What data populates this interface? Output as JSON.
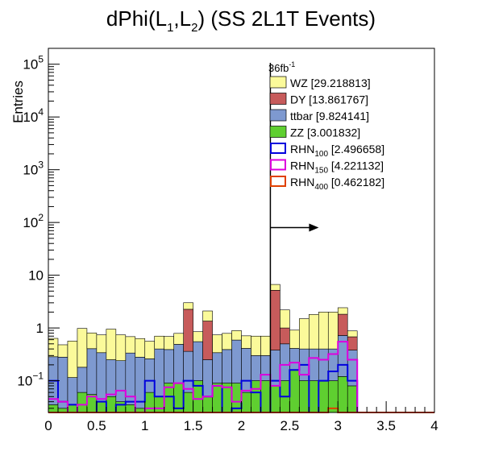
{
  "chart_data": {
    "type": "bar",
    "title": {
      "main": "dPhi(L",
      "sub1": "1",
      "sep": ",L",
      "sub2": "2",
      "tail": ") (SS 2L1T Events)"
    },
    "xlabel": "",
    "ylabel": "Entries",
    "xlim": [
      0,
      4
    ],
    "ylim": [
      0.025,
      200000
    ],
    "yscale": "log",
    "x_ticks": [
      "0",
      "0.5",
      "1",
      "1.5",
      "2",
      "2.5",
      "3",
      "3.5",
      "4"
    ],
    "y_ticks": [
      {
        "base": "10",
        "exp": "−1",
        "value": 0.1
      },
      {
        "base": "1",
        "exp": "",
        "value": 1
      },
      {
        "base": "10",
        "exp": "",
        "value": 10
      },
      {
        "base": "10",
        "exp": "2",
        "value": 100
      },
      {
        "base": "10",
        "exp": "3",
        "value": 1000
      },
      {
        "base": "10",
        "exp": "4",
        "value": 10000
      },
      {
        "base": "10",
        "exp": "5",
        "value": 100000
      }
    ],
    "luminosity": {
      "value": "36fb",
      "exp": "-1"
    },
    "cut": {
      "x": 2.3,
      "arrow_y": 80,
      "direction": "right"
    },
    "bin_width": 0.1,
    "bin_edges_start": 0,
    "stacked_series": [
      {
        "name": "ZZ",
        "legend_label": "ZZ [3.001832]",
        "fill": "#5fcf30",
        "values": [
          0.035,
          0.03,
          0.035,
          0.06,
          0.055,
          0.04,
          0.05,
          0.04,
          0.035,
          0.03,
          0.06,
          0.05,
          0.09,
          0.09,
          0.06,
          0.1,
          0.05,
          0.09,
          0.09,
          0.09,
          0.06,
          0.1,
          0.1,
          0.08,
          0.1,
          0.16,
          0.1,
          0.1,
          0.1,
          0.1,
          0.12,
          0.08,
          0,
          0,
          0,
          0,
          0,
          0,
          0,
          0
        ]
      },
      {
        "name": "ttbar",
        "legend_label": "ttbar [9.824141]",
        "fill": "#7e99d0",
        "values": [
          0.25,
          0.25,
          0.08,
          0.12,
          0.35,
          0.3,
          0.2,
          0.2,
          0.3,
          0.25,
          0.2,
          0.35,
          0.3,
          0.4,
          0.3,
          0.45,
          0.2,
          0.25,
          0.3,
          0.5,
          0.35,
          0.2,
          0.2,
          0.3,
          0.4,
          0.25,
          0.3,
          0.3,
          0.3,
          0.3,
          0.6,
          0.3,
          0,
          0,
          0,
          0,
          0,
          0,
          0,
          0
        ]
      },
      {
        "name": "DY",
        "legend_label": "DY [13.861767]",
        "fill": "#c75b5b",
        "values": [
          0,
          0,
          0,
          0,
          0,
          0,
          0,
          0,
          0,
          0,
          0,
          0,
          0,
          0,
          1.9,
          0,
          1.1,
          0,
          0,
          0,
          0,
          0,
          0,
          4.8,
          0.5,
          0,
          0,
          0,
          0,
          0,
          1.1,
          0.3,
          0,
          0,
          0,
          0,
          0,
          0,
          0,
          0
        ]
      },
      {
        "name": "WZ",
        "legend_label": "WZ [29.218813]",
        "fill": "#fbfa9a",
        "values": [
          0.35,
          0.2,
          0.45,
          0.8,
          0.4,
          0.4,
          0.7,
          0.5,
          0.35,
          0.35,
          0.3,
          0.3,
          0.3,
          0.3,
          0.75,
          0.3,
          0.75,
          0.4,
          0.4,
          0.3,
          0.3,
          0.4,
          0.4,
          1.5,
          1.2,
          0.5,
          1.1,
          1.4,
          1.6,
          1.6,
          0.6,
          0.2,
          0,
          0,
          0,
          0,
          0,
          0,
          0,
          0
        ]
      }
    ],
    "line_series": [
      {
        "name": "RHN100",
        "legend_base": "RHN",
        "legend_sub": "100",
        "legend_val": " [2.496658]",
        "color": "#0000dd",
        "values": [
          0.1,
          0.04,
          0.035,
          0.02,
          0.025,
          0.04,
          0.02,
          0.035,
          0.04,
          0.04,
          0.1,
          0.05,
          0.05,
          0.03,
          0.1,
          0.08,
          0.05,
          0.08,
          0.02,
          0.03,
          0.1,
          0.06,
          0.01,
          0.1,
          0.05,
          0.16,
          0.2,
          0.02,
          0.1,
          0.15,
          0.2,
          0.1,
          0,
          0,
          0,
          0,
          0,
          0,
          0,
          0
        ]
      },
      {
        "name": "RHN150",
        "legend_base": "RHN",
        "legend_sub": "150",
        "legend_val": " [4.221132]",
        "color": "#dd00dd",
        "values": [
          0.045,
          0.04,
          0.025,
          0.035,
          0.05,
          0.045,
          0.055,
          0.065,
          0.05,
          0.025,
          0.03,
          0.03,
          0.075,
          0.09,
          0.07,
          0.045,
          0.05,
          0.08,
          0.075,
          0.04,
          0.065,
          0.07,
          0.13,
          0.08,
          0.2,
          0.22,
          0.13,
          0.27,
          0.25,
          0.32,
          0.55,
          0.25,
          0,
          0,
          0,
          0,
          0,
          0,
          0,
          0
        ]
      },
      {
        "name": "RHN400",
        "legend_base": "RHN",
        "legend_sub": "400",
        "legend_val": " [0.462182]",
        "color": "#e04000",
        "values": [
          0.02,
          0.02,
          0.02,
          0.02,
          0.02,
          0.02,
          0.02,
          0.02,
          0.02,
          0.02,
          0.02,
          0.02,
          0.02,
          0.02,
          0.02,
          0.02,
          0.02,
          0.02,
          0.02,
          0.02,
          0.02,
          0.02,
          0.02,
          0.02,
          0.02,
          0.02,
          0.02,
          0.02,
          0.02,
          0.03,
          0.025,
          0.02,
          0.02,
          0.02,
          0.02,
          0.02,
          0.02,
          0.02,
          0.02,
          0.02
        ]
      }
    ],
    "legend_order": [
      "WZ",
      "DY",
      "ttbar",
      "ZZ",
      "RHN100",
      "RHN150",
      "RHN400"
    ],
    "legend_position": "top-right",
    "grid": false
  }
}
